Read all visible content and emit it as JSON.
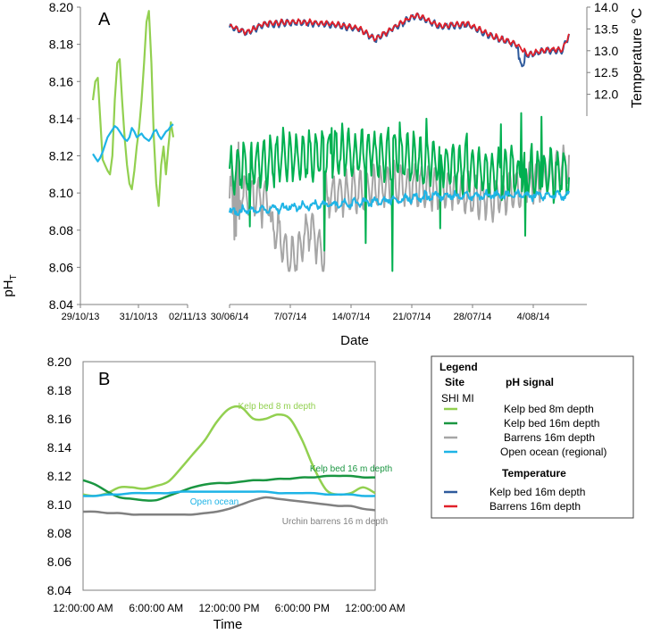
{
  "figure": {
    "y_label_main": "pH",
    "y_label_sub": "T"
  },
  "chart_data": [
    {
      "panel": "A",
      "type": "line",
      "title": "A",
      "xlabel": "Date",
      "ylabel": "pHT",
      "ylim": [
        8.04,
        8.2
      ],
      "yticks": [
        "8.04",
        "8.06",
        "8.08",
        "8.10",
        "8.12",
        "8.14",
        "8.16",
        "8.18",
        "8.20"
      ],
      "y2label": "Temperature °C",
      "y2lim": [
        11.5,
        14.0
      ],
      "y2ticks": [
        "12.0",
        "12.5",
        "13.0",
        "13.5",
        "14.0"
      ],
      "segments": [
        {
          "name": "2013",
          "xticks": [
            "29/10/13",
            "31/10/13",
            "02/11/13"
          ],
          "series": [
            {
              "name": "Kelp bed 8m depth",
              "color": "#92d050",
              "values": [
                8.15,
                8.16,
                8.162,
                8.14,
                8.118,
                8.115,
                8.112,
                8.11,
                8.12,
                8.15,
                8.17,
                8.172,
                8.15,
                8.13,
                8.115,
                8.105,
                8.102,
                8.112,
                8.125,
                8.135,
                8.15,
                8.17,
                8.192,
                8.198,
                8.17,
                8.13,
                8.105,
                8.093,
                8.115,
                8.125,
                8.11,
                8.125,
                8.138,
                8.13
              ]
            },
            {
              "name": "Open ocean (regional)",
              "color": "#1eb4e6",
              "values": [
                8.121,
                8.119,
                8.117,
                8.119,
                8.122,
                8.126,
                8.13,
                8.132,
                8.134,
                8.136,
                8.135,
                8.133,
                8.131,
                8.129,
                8.128,
                8.13,
                8.135,
                8.133,
                8.13,
                8.131,
                8.132,
                8.13,
                8.129,
                8.128,
                8.13,
                8.133,
                8.134,
                8.131,
                8.129,
                8.131,
                8.133,
                8.134,
                8.136,
                8.137
              ]
            }
          ]
        },
        {
          "name": "2014",
          "xticks": [
            "30/06/14",
            "7/07/14",
            "14/07/14",
            "21/07/14",
            "28/07/14",
            "4/08/14"
          ],
          "series": [
            {
              "name": "Kelp bed 16m depth",
              "color": "#00b050",
              "axis": "pH"
            },
            {
              "name": "Barrens 16m depth",
              "color": "#a6a6a6",
              "axis": "pH"
            },
            {
              "name": "Open ocean (regional)",
              "color": "#1eb4e6",
              "axis": "pH"
            },
            {
              "name": "Kelp bed 16m depth (temperature)",
              "color": "#2e5a9c",
              "axis": "temperature"
            },
            {
              "name": "Barrens 16m depth (temperature)",
              "color": "#e0202a",
              "axis": "temperature"
            }
          ]
        }
      ]
    },
    {
      "panel": "B",
      "type": "line",
      "title": "B",
      "xlabel": "Time",
      "ylim": [
        8.04,
        8.2
      ],
      "yticks": [
        "8.04",
        "8.06",
        "8.08",
        "8.10",
        "8.12",
        "8.14",
        "8.16",
        "8.18",
        "8.20"
      ],
      "xticks": [
        "12:00:00 AM",
        "6:00:00 AM",
        "12:00:00 PM",
        "6:00:00 PM",
        "12:00:00 AM"
      ],
      "x_hours": [
        0,
        1,
        2,
        3,
        4,
        5,
        6,
        7,
        8,
        9,
        10,
        11,
        12,
        13,
        14,
        15,
        16,
        17,
        18,
        19,
        20,
        21,
        22,
        23,
        24
      ],
      "series": [
        {
          "name": "Kelp bed 8m depth",
          "label": "Kelp bed 8 m depth",
          "color": "#92d050",
          "values": [
            8.107,
            8.106,
            8.108,
            8.112,
            8.112,
            8.111,
            8.113,
            8.116,
            8.125,
            8.135,
            8.145,
            8.158,
            8.167,
            8.168,
            8.16,
            8.16,
            8.163,
            8.16,
            8.145,
            8.125,
            8.11,
            8.107,
            8.108,
            8.112,
            8.108
          ]
        },
        {
          "name": "Kelp bed 16m depth",
          "label": "Kelp bed 16 m depth",
          "color": "#1a9641",
          "values": [
            8.117,
            8.114,
            8.109,
            8.105,
            8.104,
            8.103,
            8.103,
            8.106,
            8.109,
            8.112,
            8.114,
            8.115,
            8.115,
            8.116,
            8.117,
            8.117,
            8.118,
            8.118,
            8.119,
            8.119,
            8.12,
            8.12,
            8.12,
            8.119,
            8.119
          ]
        },
        {
          "name": "Open ocean (regional)",
          "label": "Open ocean",
          "color": "#1eb4e6",
          "values": [
            8.106,
            8.106,
            8.107,
            8.107,
            8.108,
            8.108,
            8.108,
            8.108,
            8.109,
            8.109,
            8.109,
            8.109,
            8.109,
            8.109,
            8.109,
            8.109,
            8.108,
            8.108,
            8.108,
            8.108,
            8.107,
            8.107,
            8.107,
            8.106,
            8.106
          ]
        },
        {
          "name": "Barrens 16m depth",
          "label": "Urchin barrens 16 m depth",
          "color": "#808080",
          "values": [
            8.095,
            8.095,
            8.094,
            8.094,
            8.093,
            8.093,
            8.093,
            8.093,
            8.093,
            8.093,
            8.094,
            8.095,
            8.097,
            8.1,
            8.103,
            8.105,
            8.104,
            8.103,
            8.102,
            8.101,
            8.1,
            8.099,
            8.099,
            8.097,
            8.096
          ]
        }
      ]
    }
  ],
  "legend": {
    "title": "Legend",
    "site_header": "Site",
    "site_value": "SHI MI",
    "ph_header": "pH signal",
    "ph_entries": [
      {
        "label": "Kelp bed 8m depth",
        "color": "#92d050"
      },
      {
        "label": "Kelp bed 16m depth",
        "color": "#1a9641"
      },
      {
        "label": "Barrens 16m depth",
        "color": "#a6a6a6"
      },
      {
        "label": "Open ocean (regional)",
        "color": "#1eb4e6"
      }
    ],
    "temp_header": "Temperature",
    "temp_entries": [
      {
        "label": "Kelp bed 16m depth",
        "color": "#2e5a9c"
      },
      {
        "label": "Barrens 16m depth",
        "color": "#e0202a"
      }
    ]
  }
}
